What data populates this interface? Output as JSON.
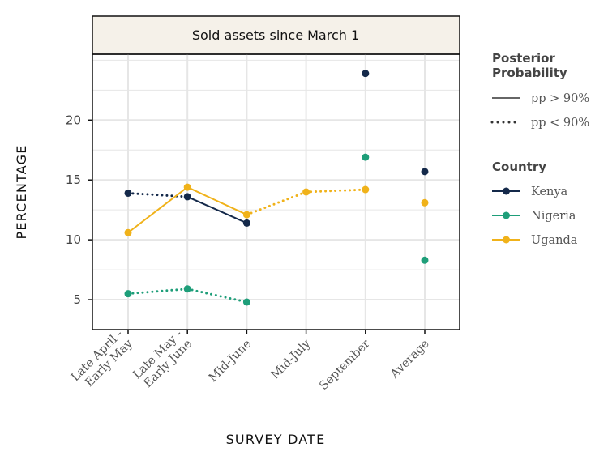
{
  "chart_data": {
    "type": "line",
    "title": "Sold assets since March 1",
    "xlabel": "SURVEY DATE",
    "ylabel": "PERCENTAGE",
    "categories": [
      [
        "Late April -",
        "Early May"
      ],
      [
        "Late May -",
        "Early June"
      ],
      [
        "Mid-June"
      ],
      [
        "Mid-July"
      ],
      [
        "September"
      ],
      [
        "Average"
      ]
    ],
    "yticks": [
      5,
      10,
      15,
      20
    ],
    "ylim": [
      2.5,
      25.5
    ],
    "grid": true,
    "legend_placement": "right",
    "series": [
      {
        "name": "Kenya",
        "color": "#14294a",
        "values": [
          13.9,
          13.6,
          11.4,
          null,
          23.9,
          15.7
        ],
        "segment_styles": [
          "dotted",
          "solid",
          null,
          null,
          null
        ]
      },
      {
        "name": "Nigeria",
        "color": "#1e9e79",
        "values": [
          5.5,
          5.9,
          4.8,
          null,
          16.9,
          8.3
        ],
        "segment_styles": [
          "dotted",
          "dotted",
          "solid",
          null,
          null
        ]
      },
      {
        "name": "Uganda",
        "color": "#f0b21a",
        "values": [
          10.6,
          14.4,
          12.1,
          14.0,
          14.2,
          13.1
        ],
        "segment_styles": [
          "solid",
          "solid",
          "dotted",
          "dotted",
          null
        ]
      }
    ],
    "connected_points": 5,
    "legend": {
      "pp_title": [
        "Posterior",
        "Probability"
      ],
      "pp_items": [
        {
          "label": "pp > 90%",
          "style": "solid"
        },
        {
          "label": "pp < 90%",
          "style": "dotted"
        }
      ],
      "country_title": "Country"
    }
  }
}
